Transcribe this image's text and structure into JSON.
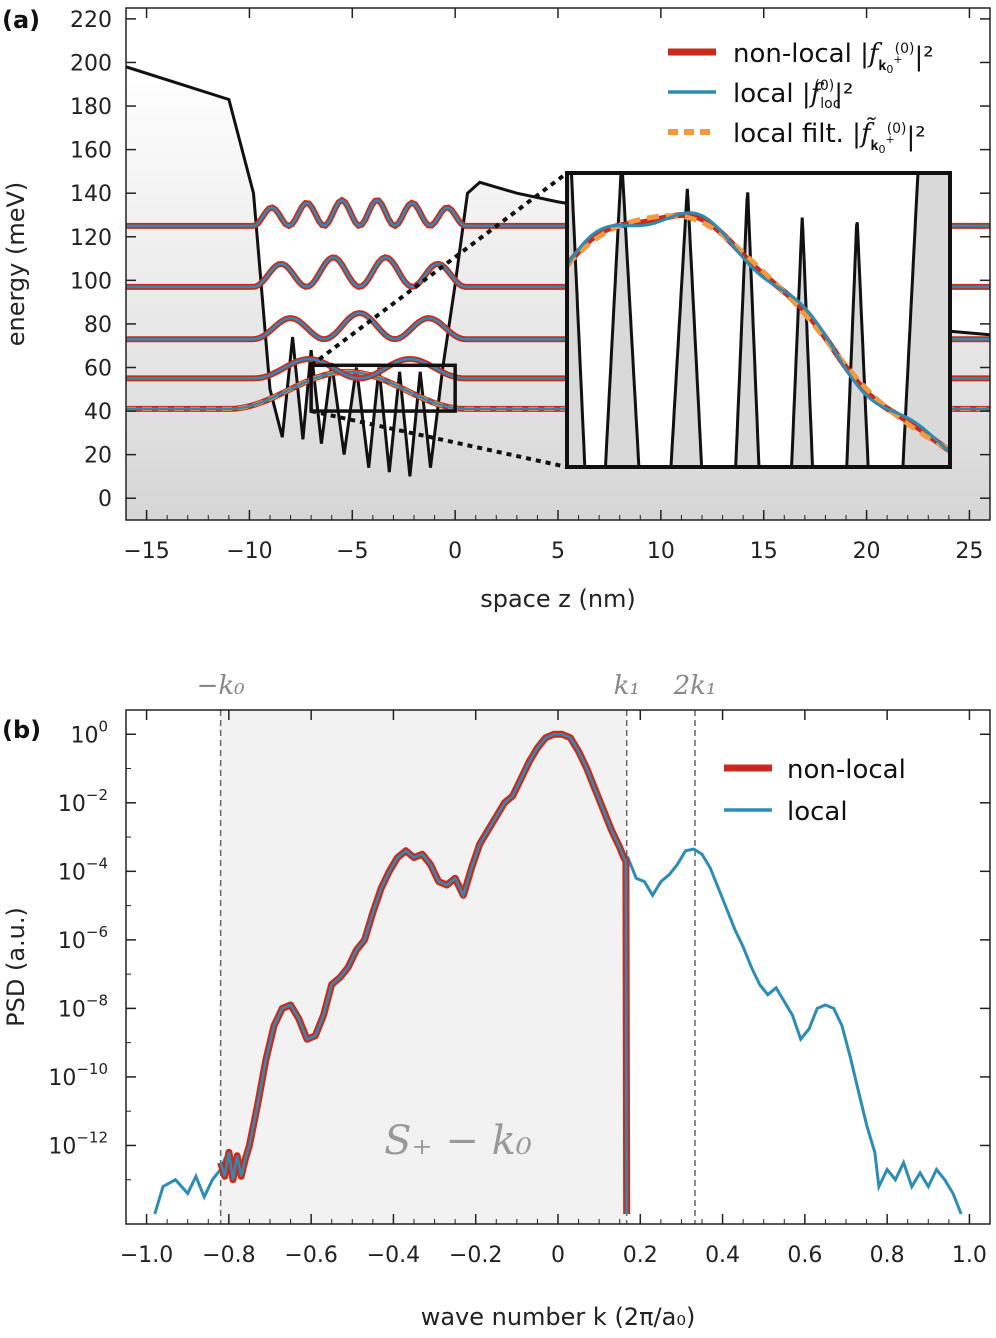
{
  "chart_data": [
    {
      "type": "line",
      "panel_label": "(a)",
      "xlabel": "space z (nm)",
      "ylabel": "energy (meV)",
      "xlim": [
        -16,
        26
      ],
      "ylim": [
        -10,
        225
      ],
      "x_ticks": [
        -15,
        -10,
        -5,
        0,
        5,
        10,
        15,
        20,
        25
      ],
      "x_tick_labels": [
        "−15",
        "−10",
        "−5",
        "0",
        "5",
        "10",
        "15",
        "20",
        "25"
      ],
      "y_ticks": [
        0,
        20,
        40,
        60,
        80,
        100,
        120,
        140,
        160,
        180,
        200,
        220
      ],
      "y_tick_labels": [
        "0",
        "20",
        "40",
        "60",
        "80",
        "100",
        "120",
        "140",
        "160",
        "180",
        "200",
        "220"
      ],
      "legend_position": "top-right",
      "legend": [
        {
          "label": "non-local |f_k0+^(0)|²",
          "color": "#cc2a1c",
          "style": "solid-thick"
        },
        {
          "label": "local |f_loc^(0)|²",
          "color": "#2b8db5",
          "style": "solid"
        },
        {
          "label": "local filt. |f̃_k0+^(0)|²",
          "color": "#f29a3d",
          "style": "dashed"
        }
      ],
      "potential": {
        "x": [
          -16,
          -11,
          -9.8,
          -9,
          -8.4,
          -7.9,
          -7.4,
          -7,
          -6.5,
          -6,
          -5.4,
          -4.8,
          -4.2,
          -3.7,
          -3.2,
          -2.7,
          -2.2,
          -1.7,
          -1.2,
          -0.6,
          0,
          0.6,
          1.2,
          3,
          5,
          7,
          10,
          15,
          20,
          26
        ],
        "y": [
          198,
          183,
          140,
          50,
          28,
          74,
          27,
          68,
          25,
          62,
          20,
          60,
          14,
          60,
          12,
          58,
          10,
          58,
          14,
          60,
          98,
          140,
          145,
          140,
          136,
          133,
          125,
          100,
          80,
          75
        ]
      },
      "states": [
        {
          "energy": 41,
          "left": -11,
          "right": 0.5,
          "peaks": 1,
          "amplitude": 17
        },
        {
          "energy": 55,
          "left": -9.8,
          "right": 0.5,
          "peaks": 2,
          "amplitude": 10
        },
        {
          "energy": 73,
          "left": -9.8,
          "right": 0.5,
          "peaks": 3,
          "amplitude": 12
        },
        {
          "energy": 97,
          "left": -9.8,
          "right": 0.5,
          "peaks": 4,
          "amplitude": 14
        },
        {
          "energy": 125,
          "left": -9.8,
          "right": 0.5,
          "peaks": 6,
          "amplitude": 12
        }
      ],
      "inset": {
        "zoom_region_x": [
          -7,
          0
        ],
        "zoom_region_y": [
          40,
          61
        ]
      }
    },
    {
      "type": "line",
      "panel_label": "(b)",
      "xlabel": "wave number k (2π/a₀)",
      "ylabel": "PSD (a.u.)",
      "yscale": "log",
      "xlim": [
        -1.05,
        1.05
      ],
      "ylim": [
        1e-14,
        10
      ],
      "x_ticks": [
        -1.0,
        -0.8,
        -0.6,
        -0.4,
        -0.2,
        0,
        0.2,
        0.4,
        0.6,
        0.8,
        1.0
      ],
      "x_tick_labels": [
        "−1.0",
        "−0.8",
        "−0.6",
        "−0.4",
        "−0.2",
        "0",
        "0.2",
        "0.4",
        "0.6",
        "0.8",
        "1.0"
      ],
      "y_tick_exponents": [
        0,
        -2,
        -4,
        -6,
        -8,
        -10,
        -12
      ],
      "legend_position": "top-right",
      "region_label": "S₊ − k₀",
      "region_x": [
        -0.82,
        0.167
      ],
      "vlines": [
        {
          "x": -0.82,
          "label": "−k₀"
        },
        {
          "x": 0.167,
          "label": "k₁"
        },
        {
          "x": 0.333,
          "label": "2k₁"
        }
      ],
      "series": [
        {
          "name": "non-local",
          "color": "#cc2a1c",
          "x": [
            -0.82,
            -0.81,
            -0.8,
            -0.79,
            -0.78,
            -0.77,
            -0.76,
            -0.75,
            -0.73,
            -0.71,
            -0.69,
            -0.67,
            -0.65,
            -0.63,
            -0.61,
            -0.59,
            -0.57,
            -0.55,
            -0.53,
            -0.51,
            -0.49,
            -0.47,
            -0.45,
            -0.43,
            -0.41,
            -0.39,
            -0.37,
            -0.35,
            -0.33,
            -0.31,
            -0.29,
            -0.27,
            -0.25,
            -0.23,
            -0.21,
            -0.19,
            -0.17,
            -0.15,
            -0.13,
            -0.11,
            -0.09,
            -0.07,
            -0.05,
            -0.03,
            -0.01,
            0.01,
            0.03,
            0.05,
            0.07,
            0.09,
            0.11,
            0.13,
            0.15,
            0.16,
            0.165,
            0.167
          ],
          "log10_y": [
            -12.5,
            -12.9,
            -12.2,
            -13.0,
            -12.3,
            -12.9,
            -12.4,
            -12.0,
            -10.8,
            -9.5,
            -8.5,
            -8.0,
            -7.9,
            -8.3,
            -8.9,
            -8.8,
            -8.2,
            -7.3,
            -7.1,
            -6.8,
            -6.3,
            -6.0,
            -5.2,
            -4.5,
            -4.0,
            -3.6,
            -3.4,
            -3.6,
            -3.5,
            -3.8,
            -4.3,
            -4.4,
            -4.2,
            -4.7,
            -3.9,
            -3.2,
            -2.8,
            -2.4,
            -2.0,
            -1.8,
            -1.3,
            -0.8,
            -0.4,
            -0.1,
            0.0,
            0.0,
            -0.1,
            -0.5,
            -1.0,
            -1.6,
            -2.2,
            -2.8,
            -3.3,
            -3.6,
            -3.7,
            -14.0
          ]
        },
        {
          "name": "local",
          "color": "#2b8db5",
          "x": [
            -0.98,
            -0.96,
            -0.93,
            -0.9,
            -0.88,
            -0.86,
            -0.84,
            -0.82,
            -0.81,
            -0.79,
            -0.77,
            -0.75,
            -0.73,
            -0.71,
            -0.69,
            -0.67,
            -0.65,
            -0.63,
            -0.61,
            -0.59,
            -0.57,
            -0.55,
            -0.53,
            -0.51,
            -0.49,
            -0.47,
            -0.45,
            -0.43,
            -0.41,
            -0.39,
            -0.37,
            -0.35,
            -0.33,
            -0.31,
            -0.29,
            -0.27,
            -0.25,
            -0.23,
            -0.21,
            -0.19,
            -0.17,
            -0.15,
            -0.13,
            -0.11,
            -0.09,
            -0.07,
            -0.05,
            -0.03,
            -0.01,
            0.01,
            0.03,
            0.05,
            0.07,
            0.09,
            0.11,
            0.13,
            0.15,
            0.17,
            0.19,
            0.21,
            0.23,
            0.25,
            0.27,
            0.29,
            0.31,
            0.33,
            0.35,
            0.37,
            0.39,
            0.41,
            0.43,
            0.45,
            0.47,
            0.49,
            0.51,
            0.53,
            0.55,
            0.57,
            0.59,
            0.61,
            0.63,
            0.65,
            0.67,
            0.69,
            0.71,
            0.73,
            0.75,
            0.77,
            0.78,
            0.8,
            0.82,
            0.84,
            0.86,
            0.88,
            0.9,
            0.92,
            0.94,
            0.96,
            0.98
          ],
          "log10_y": [
            -14.0,
            -13.2,
            -13.0,
            -13.4,
            -12.9,
            -13.5,
            -13.0,
            -12.7,
            -12.4,
            -12.7,
            -12.6,
            -12.2,
            -10.8,
            -9.5,
            -8.5,
            -8.0,
            -7.9,
            -8.3,
            -8.9,
            -8.8,
            -8.2,
            -7.3,
            -7.1,
            -6.8,
            -6.3,
            -6.0,
            -5.2,
            -4.5,
            -4.0,
            -3.6,
            -3.4,
            -3.6,
            -3.5,
            -3.8,
            -4.3,
            -4.4,
            -4.2,
            -4.7,
            -3.9,
            -3.2,
            -2.8,
            -2.4,
            -2.0,
            -1.8,
            -1.3,
            -0.8,
            -0.4,
            -0.1,
            0.0,
            0.0,
            -0.1,
            -0.5,
            -1.0,
            -1.6,
            -2.2,
            -2.8,
            -3.4,
            -3.6,
            -4.2,
            -4.3,
            -4.7,
            -4.3,
            -4.1,
            -3.8,
            -3.4,
            -3.35,
            -3.5,
            -3.9,
            -4.5,
            -5.1,
            -5.7,
            -6.2,
            -6.8,
            -7.3,
            -7.6,
            -7.4,
            -7.8,
            -8.2,
            -8.9,
            -8.6,
            -8.0,
            -7.9,
            -8.0,
            -8.5,
            -9.4,
            -10.4,
            -11.4,
            -12.2,
            -13.2,
            -12.7,
            -13.0,
            -12.5,
            -13.2,
            -12.8,
            -13.2,
            -12.7,
            -13.0,
            -13.4,
            -14.0
          ]
        }
      ]
    }
  ],
  "inset_colors": {
    "potential": "#111111",
    "fill_gray": "#d9d9d9"
  }
}
